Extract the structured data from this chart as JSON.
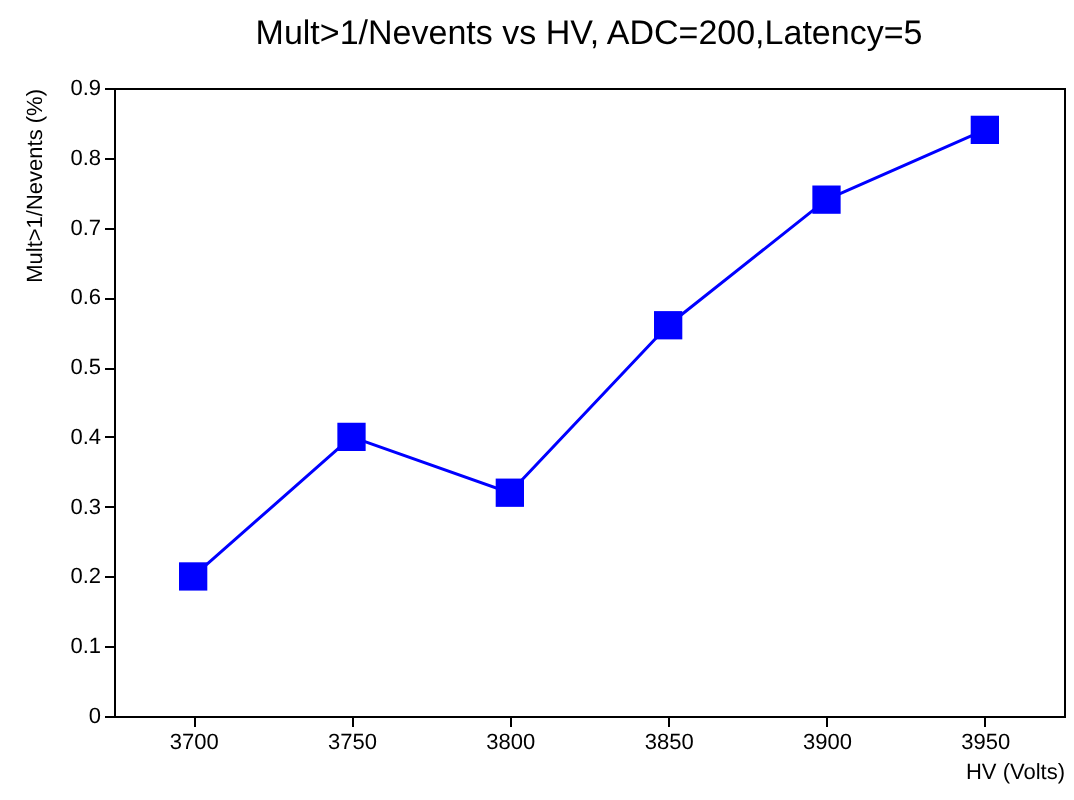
{
  "chart_data": {
    "type": "line",
    "title": "Mult>1/Nevents vs HV, ADC=200,Latency=5",
    "xlabel": "HV (Volts)",
    "ylabel": "Mult>1/Nevents (%)",
    "x": [
      3700,
      3750,
      3800,
      3850,
      3900,
      3950
    ],
    "series": [
      {
        "color": "#0000ff",
        "values": [
          0.2,
          0.4,
          0.32,
          0.56,
          0.74,
          0.84
        ]
      }
    ],
    "xlim": [
      3675,
      3975
    ],
    "xticks": [
      3700,
      3750,
      3800,
      3850,
      3900,
      3950
    ],
    "ylim": [
      0,
      0.9
    ],
    "yticks": [
      0,
      0.1,
      0.2,
      0.3,
      0.4,
      0.5,
      0.6,
      0.7,
      0.8,
      0.9
    ],
    "marker": "square",
    "line_style": "solid",
    "grid": false
  }
}
